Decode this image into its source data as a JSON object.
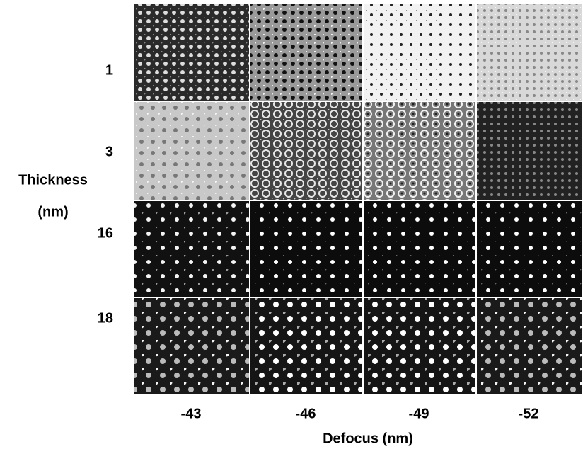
{
  "figure": {
    "row_labels": [
      "1",
      "3",
      "16",
      "18"
    ],
    "column_labels": [
      "-43",
      "-46",
      "-49",
      "-52"
    ],
    "y_axis_title": [
      "Thickness",
      "(nm)"
    ],
    "x_axis_title": "Defocus (nm)"
  }
}
